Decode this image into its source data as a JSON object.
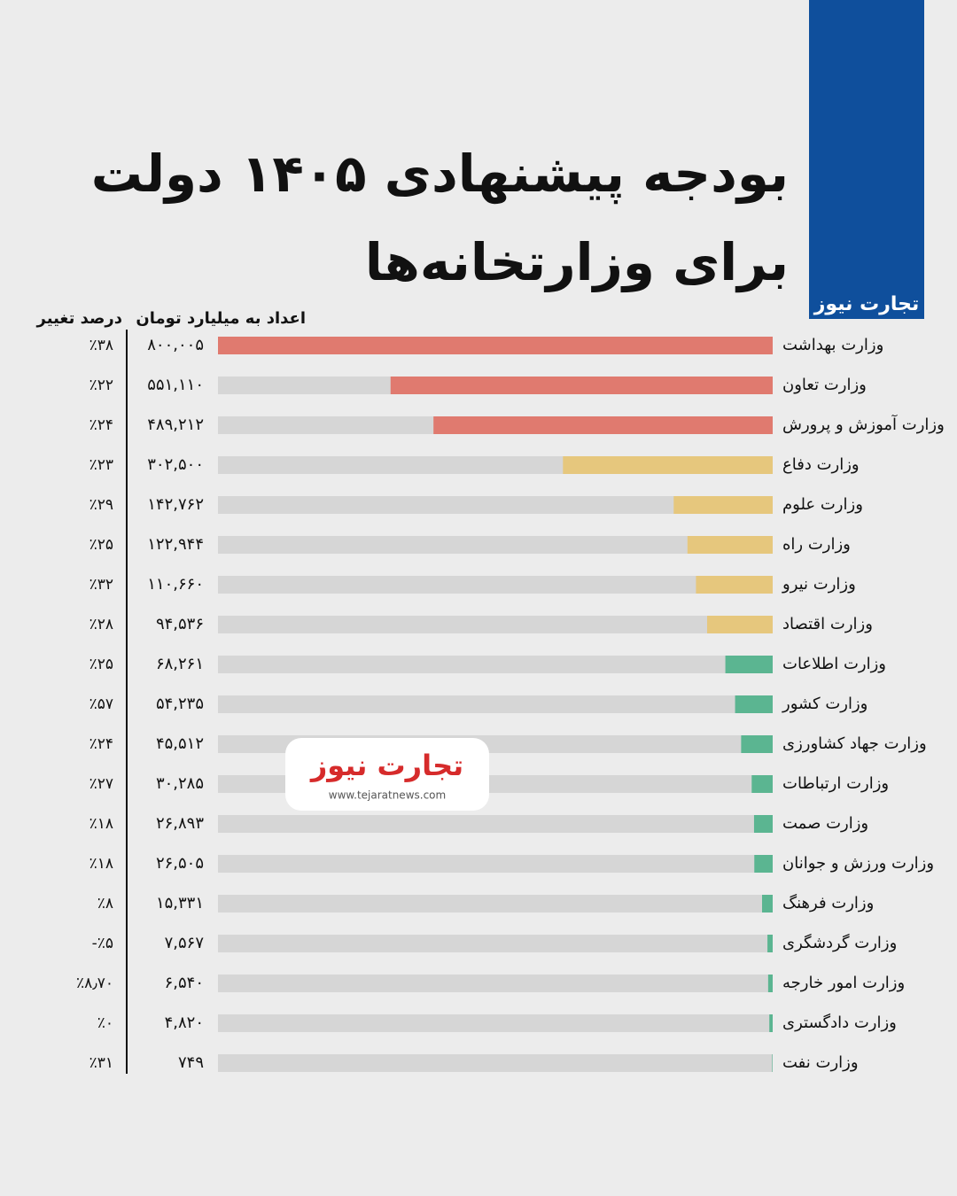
{
  "brand": {
    "logo": "تجارت نیوز",
    "url": "www.tejaratnews.com"
  },
  "chart_data": {
    "type": "bar",
    "orientation": "horizontal",
    "title": "بودجه پیشنهادی ۱۴۰۵ دولت",
    "subtitle": "برای وزارتخانه‌ها",
    "categories": [
      "وزارت بهداشت",
      "وزارت تعاون",
      "وزارت آموزش و پرورش",
      "وزارت دفاع",
      "وزارت علوم",
      "وزارت راه",
      "وزارت نیرو",
      "وزارت اقتصاد",
      "وزارت اطلاعات",
      "وزارت کشور",
      "وزارت جهاد کشاورزی",
      "وزارت ارتباطات",
      "وزارت صمت",
      "وزارت ورزش و جوانان",
      "وزارت فرهنگ",
      "وزارت گردشگری",
      "وزارت امور خارجه",
      "وزارت دادگستری",
      "وزارت نفت"
    ],
    "colors": [
      "#e07a6f",
      "#e07a6f",
      "#e07a6f",
      "#e6c77d",
      "#e6c77d",
      "#e6c77d",
      "#e6c77d",
      "#e6c77d",
      "#5bb591",
      "#5bb591",
      "#5bb591",
      "#5bb591",
      "#5bb591",
      "#5bb591",
      "#5bb591",
      "#5bb591",
      "#5bb591",
      "#5bb591",
      "#5bb591"
    ],
    "series": [
      {
        "name": "اعداد به میلیارد تومان",
        "values": [
          800005,
          551110,
          489212,
          302500,
          142762,
          122944,
          110660,
          94536,
          68261,
          54235,
          45512,
          30285,
          26893,
          26505,
          15331,
          7567,
          6540,
          4820,
          749
        ],
        "value_labels": [
          "۸۰۰,۰۰۵",
          "۵۵۱,۱۱۰",
          "۴۸۹,۲۱۲",
          "۳۰۲,۵۰۰",
          "۱۴۲,۷۶۲",
          "۱۲۲,۹۴۴",
          "۱۱۰,۶۶۰",
          "۹۴,۵۳۶",
          "۶۸,۲۶۱",
          "۵۴,۲۳۵",
          "۴۵,۵۱۲",
          "۳۰,۲۸۵",
          "۲۶,۸۹۳",
          "۲۶,۵۰۵",
          "۱۵,۳۳۱",
          "۷,۵۶۷",
          "۶,۵۴۰",
          "۴,۸۲۰",
          "۷۴۹"
        ]
      },
      {
        "name": "درصد تغییر",
        "values": [
          38,
          22,
          24,
          23,
          29,
          25,
          32,
          28,
          25,
          57,
          24,
          27,
          18,
          18,
          8,
          -5,
          8.7,
          0,
          31
        ],
        "value_labels": [
          "٪۳۸",
          "٪۲۲",
          "٪۲۴",
          "٪۲۳",
          "٪۲۹",
          "٪۲۵",
          "٪۳۲",
          "٪۲۸",
          "٪۲۵",
          "٪۵۷",
          "٪۲۴",
          "٪۲۷",
          "٪۱۸",
          "٪۱۸",
          "٪۸",
          "-٪۵",
          "٪۸٫۷۰",
          "٪۰",
          "٪۳۱"
        ]
      }
    ]
  }
}
